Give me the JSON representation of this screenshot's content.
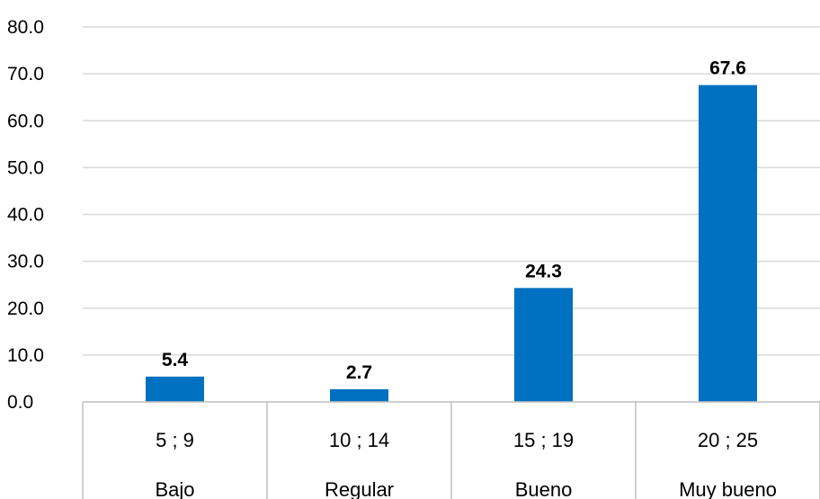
{
  "chart_data": {
    "type": "bar",
    "categories": [
      "5 ; 9",
      "10 ; 14",
      "15 ; 19",
      "20 ; 25"
    ],
    "category_groups": [
      "Bajo",
      "Regular",
      "Bueno",
      "Muy bueno"
    ],
    "values": [
      5.4,
      2.7,
      24.3,
      67.6
    ],
    "value_labels": [
      "5.4",
      "2.7",
      "24.3",
      "67.6"
    ],
    "y_ticks": [
      "0.0",
      "10.0",
      "20.0",
      "30.0",
      "40.0",
      "50.0",
      "60.0",
      "70.0",
      "80.0"
    ],
    "ylim": [
      0,
      80
    ],
    "bar_color": "#0070C0",
    "grid": true,
    "legend": "none"
  }
}
